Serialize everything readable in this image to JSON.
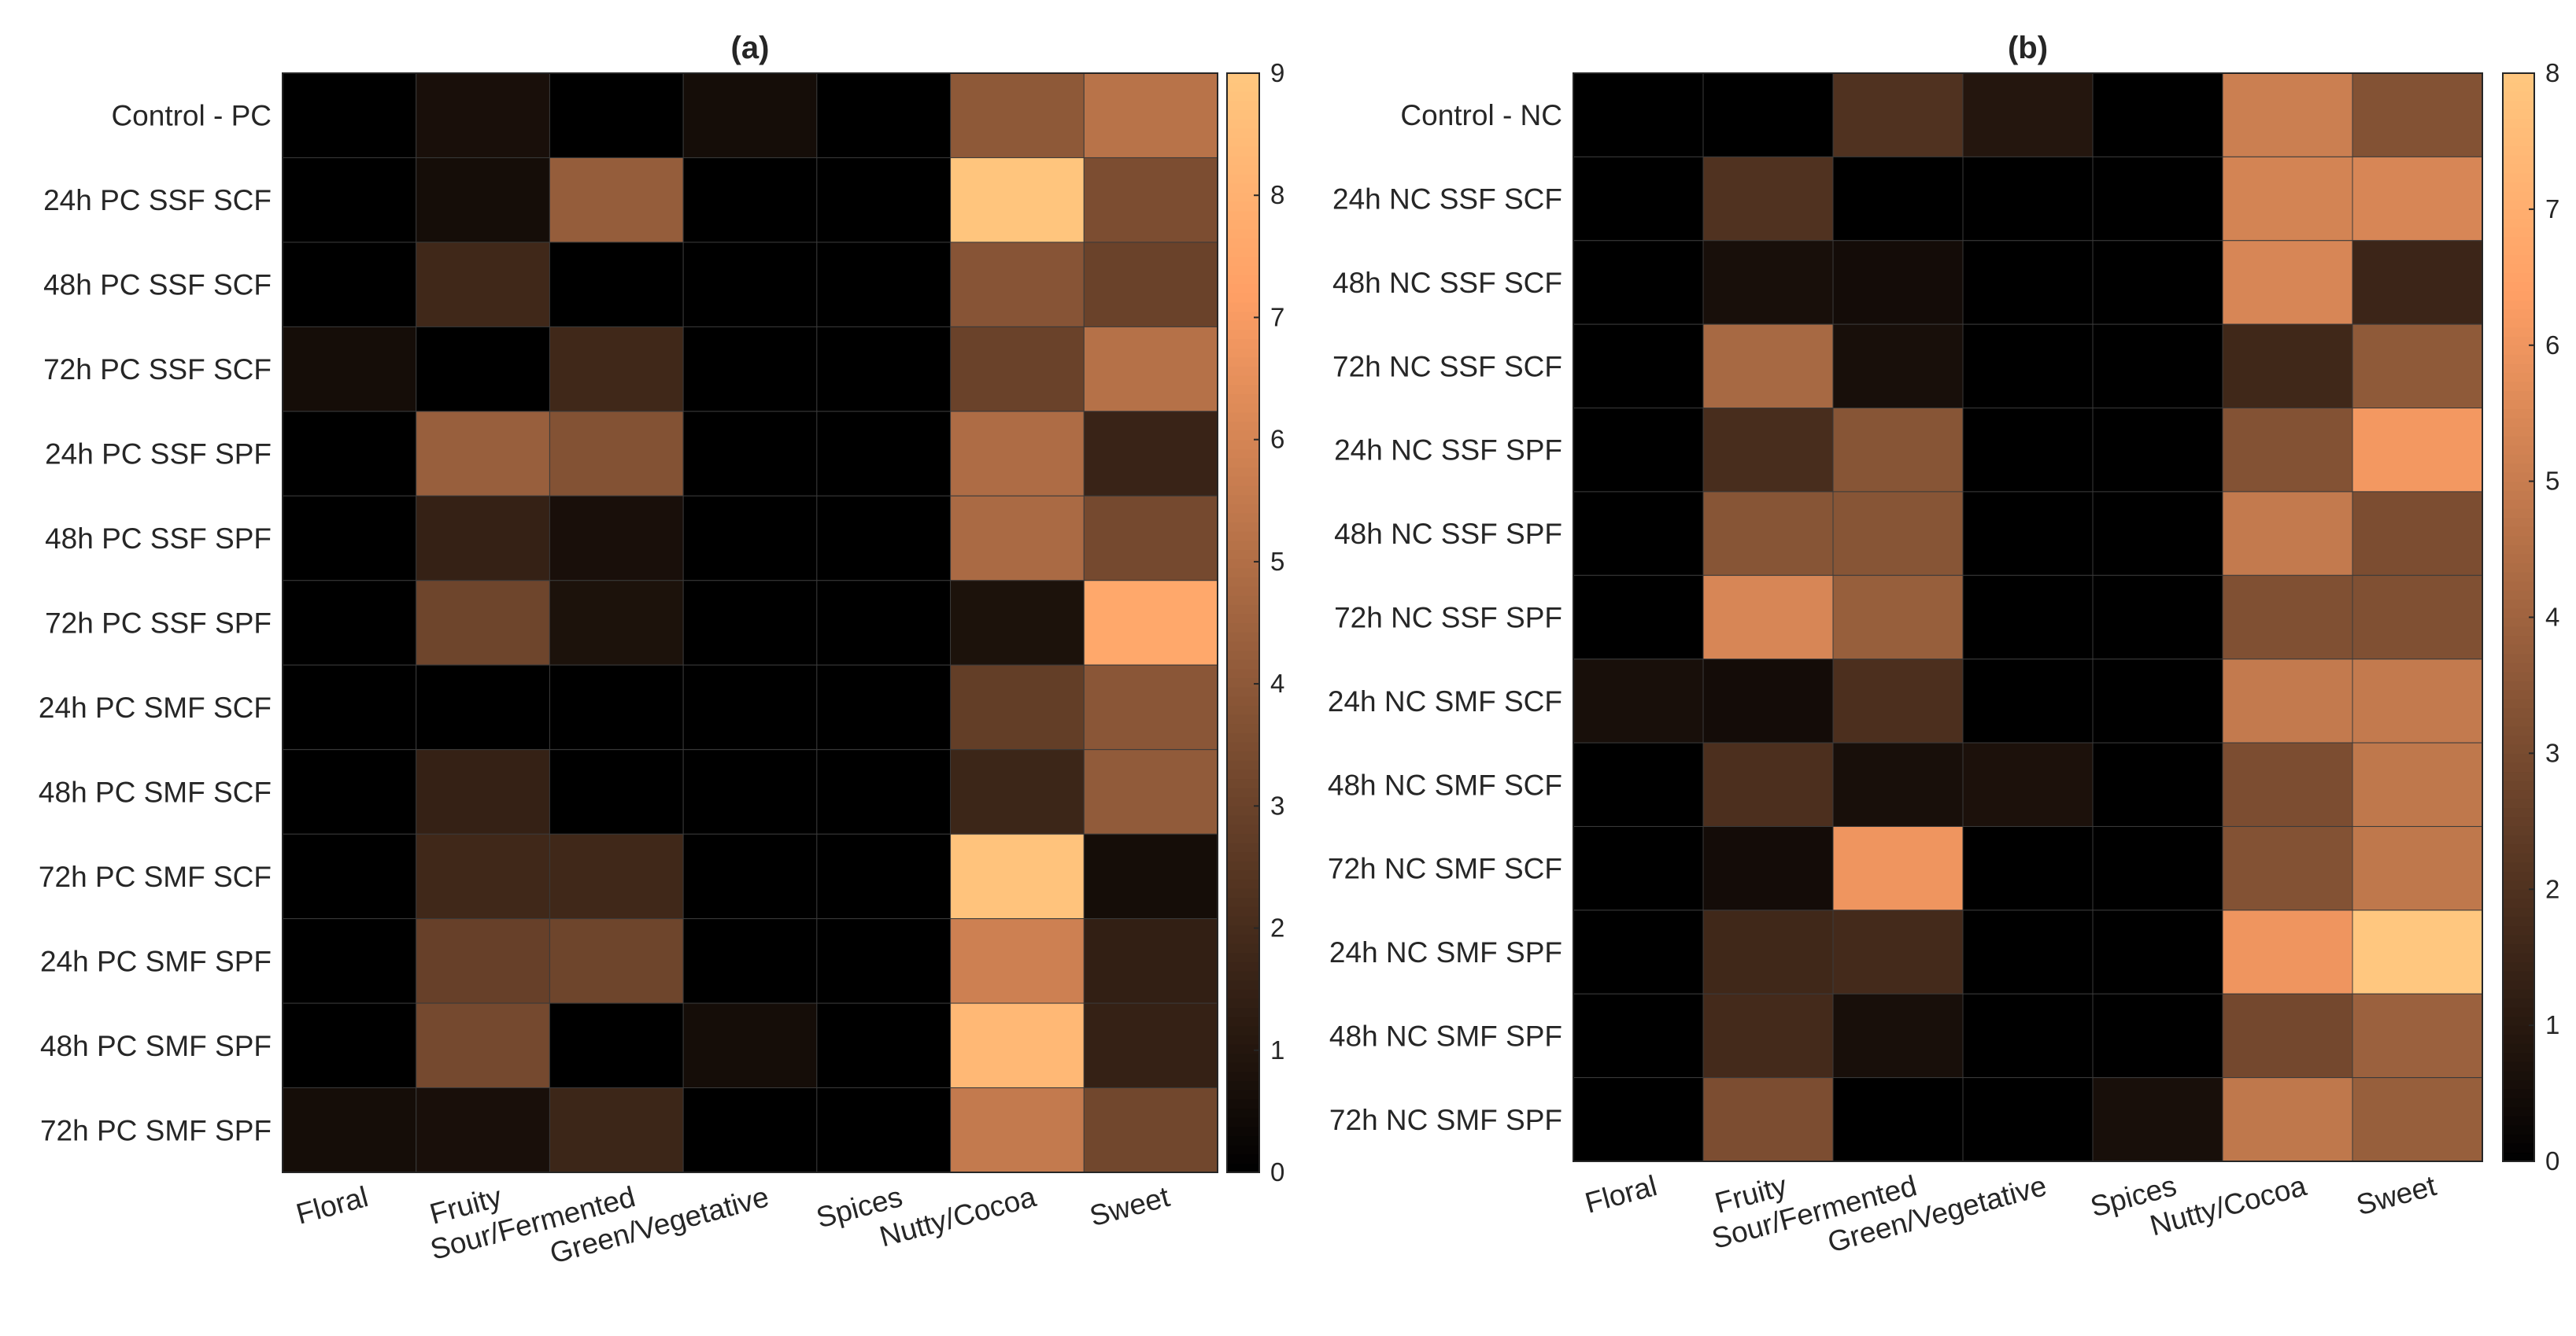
{
  "figure": {
    "background": "#ffffff"
  },
  "chart_data": [
    {
      "type": "heatmap",
      "title": "(a)",
      "columns": [
        "Floral",
        "Fruity",
        "Sour/Fermented",
        "Green/Vegetative",
        "Spices",
        "Nutty/Cocoa",
        "Sweet"
      ],
      "rows": [
        "Control - PC",
        "24h PC SSF SCF",
        "48h PC SSF SCF",
        "72h PC SSF SCF",
        "24h PC SSF SPF",
        "48h PC SSF SPF",
        "72h PC SSF SPF",
        "24h PC SMF SCF",
        "48h PC SMF SCF",
        "72h PC SMF SCF",
        "24h PC SMF SPF",
        "48h PC SMF SPF",
        "72h PC SMF SPF"
      ],
      "values": [
        [
          0,
          0.7,
          0,
          0.6,
          0,
          4.0,
          5.2
        ],
        [
          0,
          0.6,
          4.2,
          0,
          0,
          8.9,
          3.5
        ],
        [
          0,
          1.8,
          0,
          0,
          0,
          3.8,
          3.0
        ],
        [
          0.6,
          0,
          1.8,
          0,
          0,
          3.0,
          5.1
        ],
        [
          0,
          4.3,
          3.7,
          0,
          0,
          4.9,
          1.6
        ],
        [
          0,
          1.5,
          0.7,
          0,
          0,
          4.8,
          3.3
        ],
        [
          0,
          3.1,
          0.8,
          0,
          0,
          0.8,
          7.6
        ],
        [
          0,
          0,
          0,
          0,
          0,
          2.8,
          3.9
        ],
        [
          0,
          1.5,
          0,
          0,
          0,
          1.7,
          4.1
        ],
        [
          0,
          1.8,
          1.8,
          0,
          0,
          8.8,
          0.6
        ],
        [
          0,
          2.9,
          3.1,
          0,
          0,
          5.8,
          1.4
        ],
        [
          0,
          3.3,
          0,
          0.6,
          0,
          8.3,
          1.5
        ],
        [
          0.6,
          0.7,
          1.7,
          0,
          0,
          5.5,
          3.2
        ]
      ],
      "colorbar": {
        "min": 0,
        "max": 9,
        "ticks": [
          0,
          1,
          2,
          3,
          4,
          5,
          6,
          7,
          8,
          9
        ]
      }
    },
    {
      "type": "heatmap",
      "title": "(b)",
      "columns": [
        "Floral",
        "Fruity",
        "Sour/Fermented",
        "Green/Vegetative",
        "Spices",
        "Nutty/Cocoa",
        "Sweet"
      ],
      "rows": [
        "Control - NC",
        "24h NC SSF SCF",
        "48h NC SSF SCF",
        "72h NC SSF SCF",
        "24h NC SSF SPF",
        "48h NC SSF SPF",
        "72h NC SSF SPF",
        "24h NC SMF SCF",
        "48h NC SMF SCF",
        "72h NC SMF SCF",
        "24h NC SMF SPF",
        "48h NC SMF SPF",
        "72h NC SMF SPF"
      ],
      "values": [
        [
          0,
          0,
          2.0,
          0.9,
          0,
          5.1,
          3.3
        ],
        [
          0,
          2.0,
          0,
          0,
          0,
          5.3,
          5.4
        ],
        [
          0,
          0.6,
          0.5,
          0,
          0,
          5.4,
          1.5
        ],
        [
          0,
          4.2,
          0.6,
          0,
          0,
          1.6,
          3.6
        ],
        [
          0,
          1.8,
          3.4,
          0,
          0,
          3.3,
          6.1
        ],
        [
          0,
          3.4,
          3.4,
          0,
          0,
          4.9,
          3.1
        ],
        [
          0,
          5.4,
          3.8,
          0,
          0,
          3.2,
          3.2
        ],
        [
          0.6,
          0.5,
          1.9,
          0,
          0,
          4.9,
          4.9
        ],
        [
          0,
          1.9,
          0.6,
          0.7,
          0,
          3.1,
          4.8
        ],
        [
          0,
          0.5,
          6.0,
          0,
          0,
          3.3,
          4.8
        ],
        [
          0,
          1.6,
          1.7,
          0,
          0,
          6.0,
          8.0
        ],
        [
          0,
          1.7,
          0.6,
          0,
          0,
          2.9,
          3.9
        ],
        [
          0,
          3.1,
          0,
          0,
          0.6,
          4.8,
          3.8
        ]
      ],
      "colorbar": {
        "min": 0,
        "max": 8,
        "ticks": [
          0,
          1,
          2,
          3,
          4,
          5,
          6,
          7,
          8
        ]
      }
    }
  ]
}
